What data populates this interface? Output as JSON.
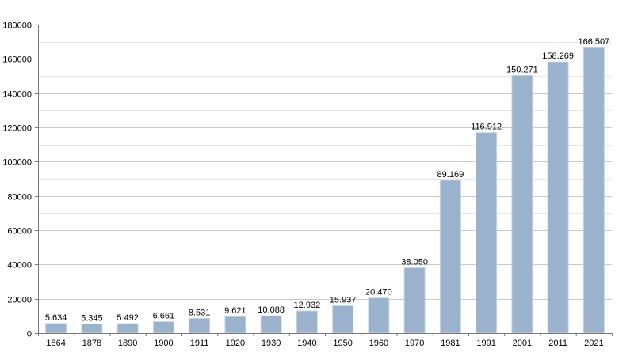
{
  "chart_data": {
    "type": "bar",
    "title": "",
    "xlabel": "",
    "ylabel": "",
    "ylim": [
      0,
      180000
    ],
    "y_ticks": [
      0,
      20000,
      40000,
      60000,
      80000,
      100000,
      120000,
      140000,
      160000,
      180000
    ],
    "y_tick_labels": [
      "0",
      "20000",
      "40000",
      "60000",
      "80000",
      "100000",
      "120000",
      "140000",
      "160000",
      "180000"
    ],
    "grid": true,
    "legend": "none",
    "categories": [
      "1864",
      "1878",
      "1890",
      "1900",
      "1911",
      "1920",
      "1930",
      "1940",
      "1950",
      "1960",
      "1970",
      "1981",
      "1991",
      "2001",
      "2011",
      "2021"
    ],
    "values": [
      5634,
      5345,
      5492,
      6661,
      8531,
      9621,
      10088,
      12932,
      15937,
      20470,
      38050,
      89169,
      116912,
      150271,
      158269,
      166507
    ],
    "value_labels": [
      "5.634",
      "5.345",
      "5.492",
      "6.661",
      "8.531",
      "9.621",
      "10.088",
      "12.932",
      "15.937",
      "20.470",
      "38.050",
      "89.169",
      "116.912",
      "150.271",
      "158.269",
      "166.507"
    ],
    "colors": {
      "bar": "#9ab2cc",
      "bar_edge": "#c8d6e4",
      "grid_major": "#c8c8c8",
      "grid_minor": "#e6e6e6",
      "axis": "#777777",
      "text": "#000000"
    }
  }
}
